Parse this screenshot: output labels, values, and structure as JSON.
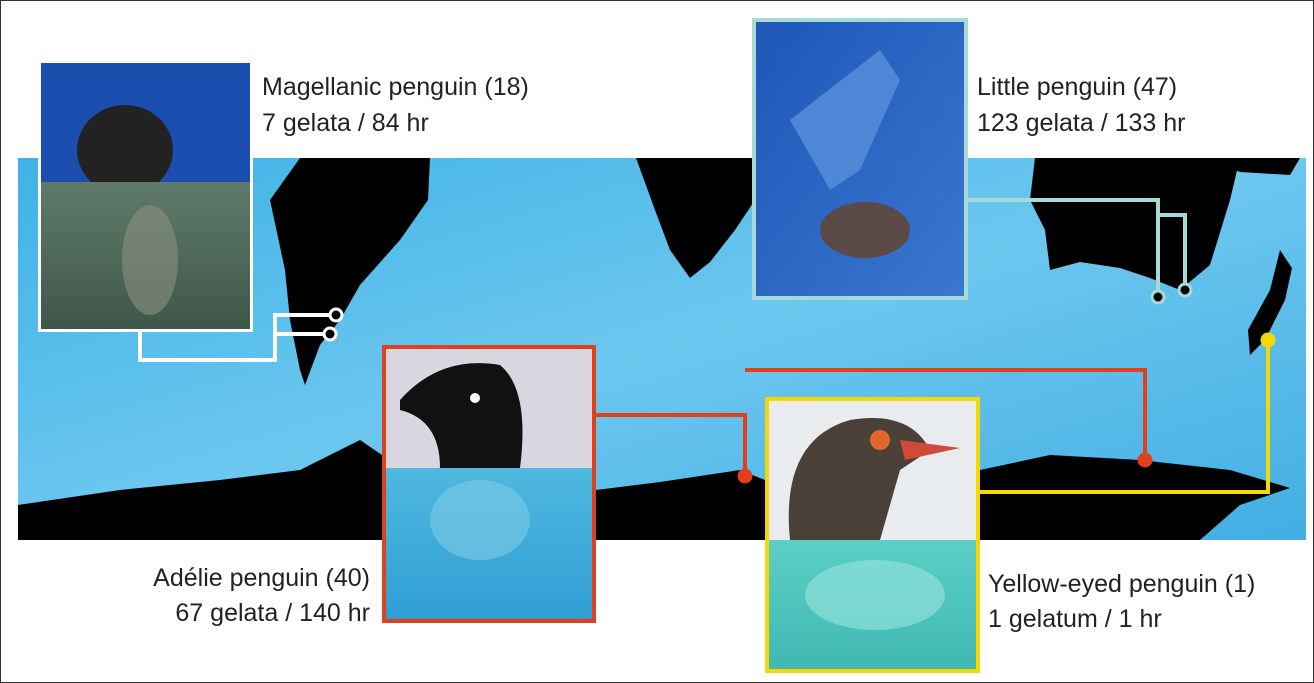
{
  "callouts": [
    {
      "species": "Magellanic penguin (18)",
      "stats": "7 gelata / 84 hr"
    },
    {
      "species": "Little penguin (47)",
      "stats": "123 gelata / 133 hr"
    },
    {
      "species": "Adélie penguin (40)",
      "stats": "67 gelata / 140 hr"
    },
    {
      "species": "Yellow-eyed penguin (1)",
      "stats": "1 gelatum / 1 hr"
    }
  ]
}
